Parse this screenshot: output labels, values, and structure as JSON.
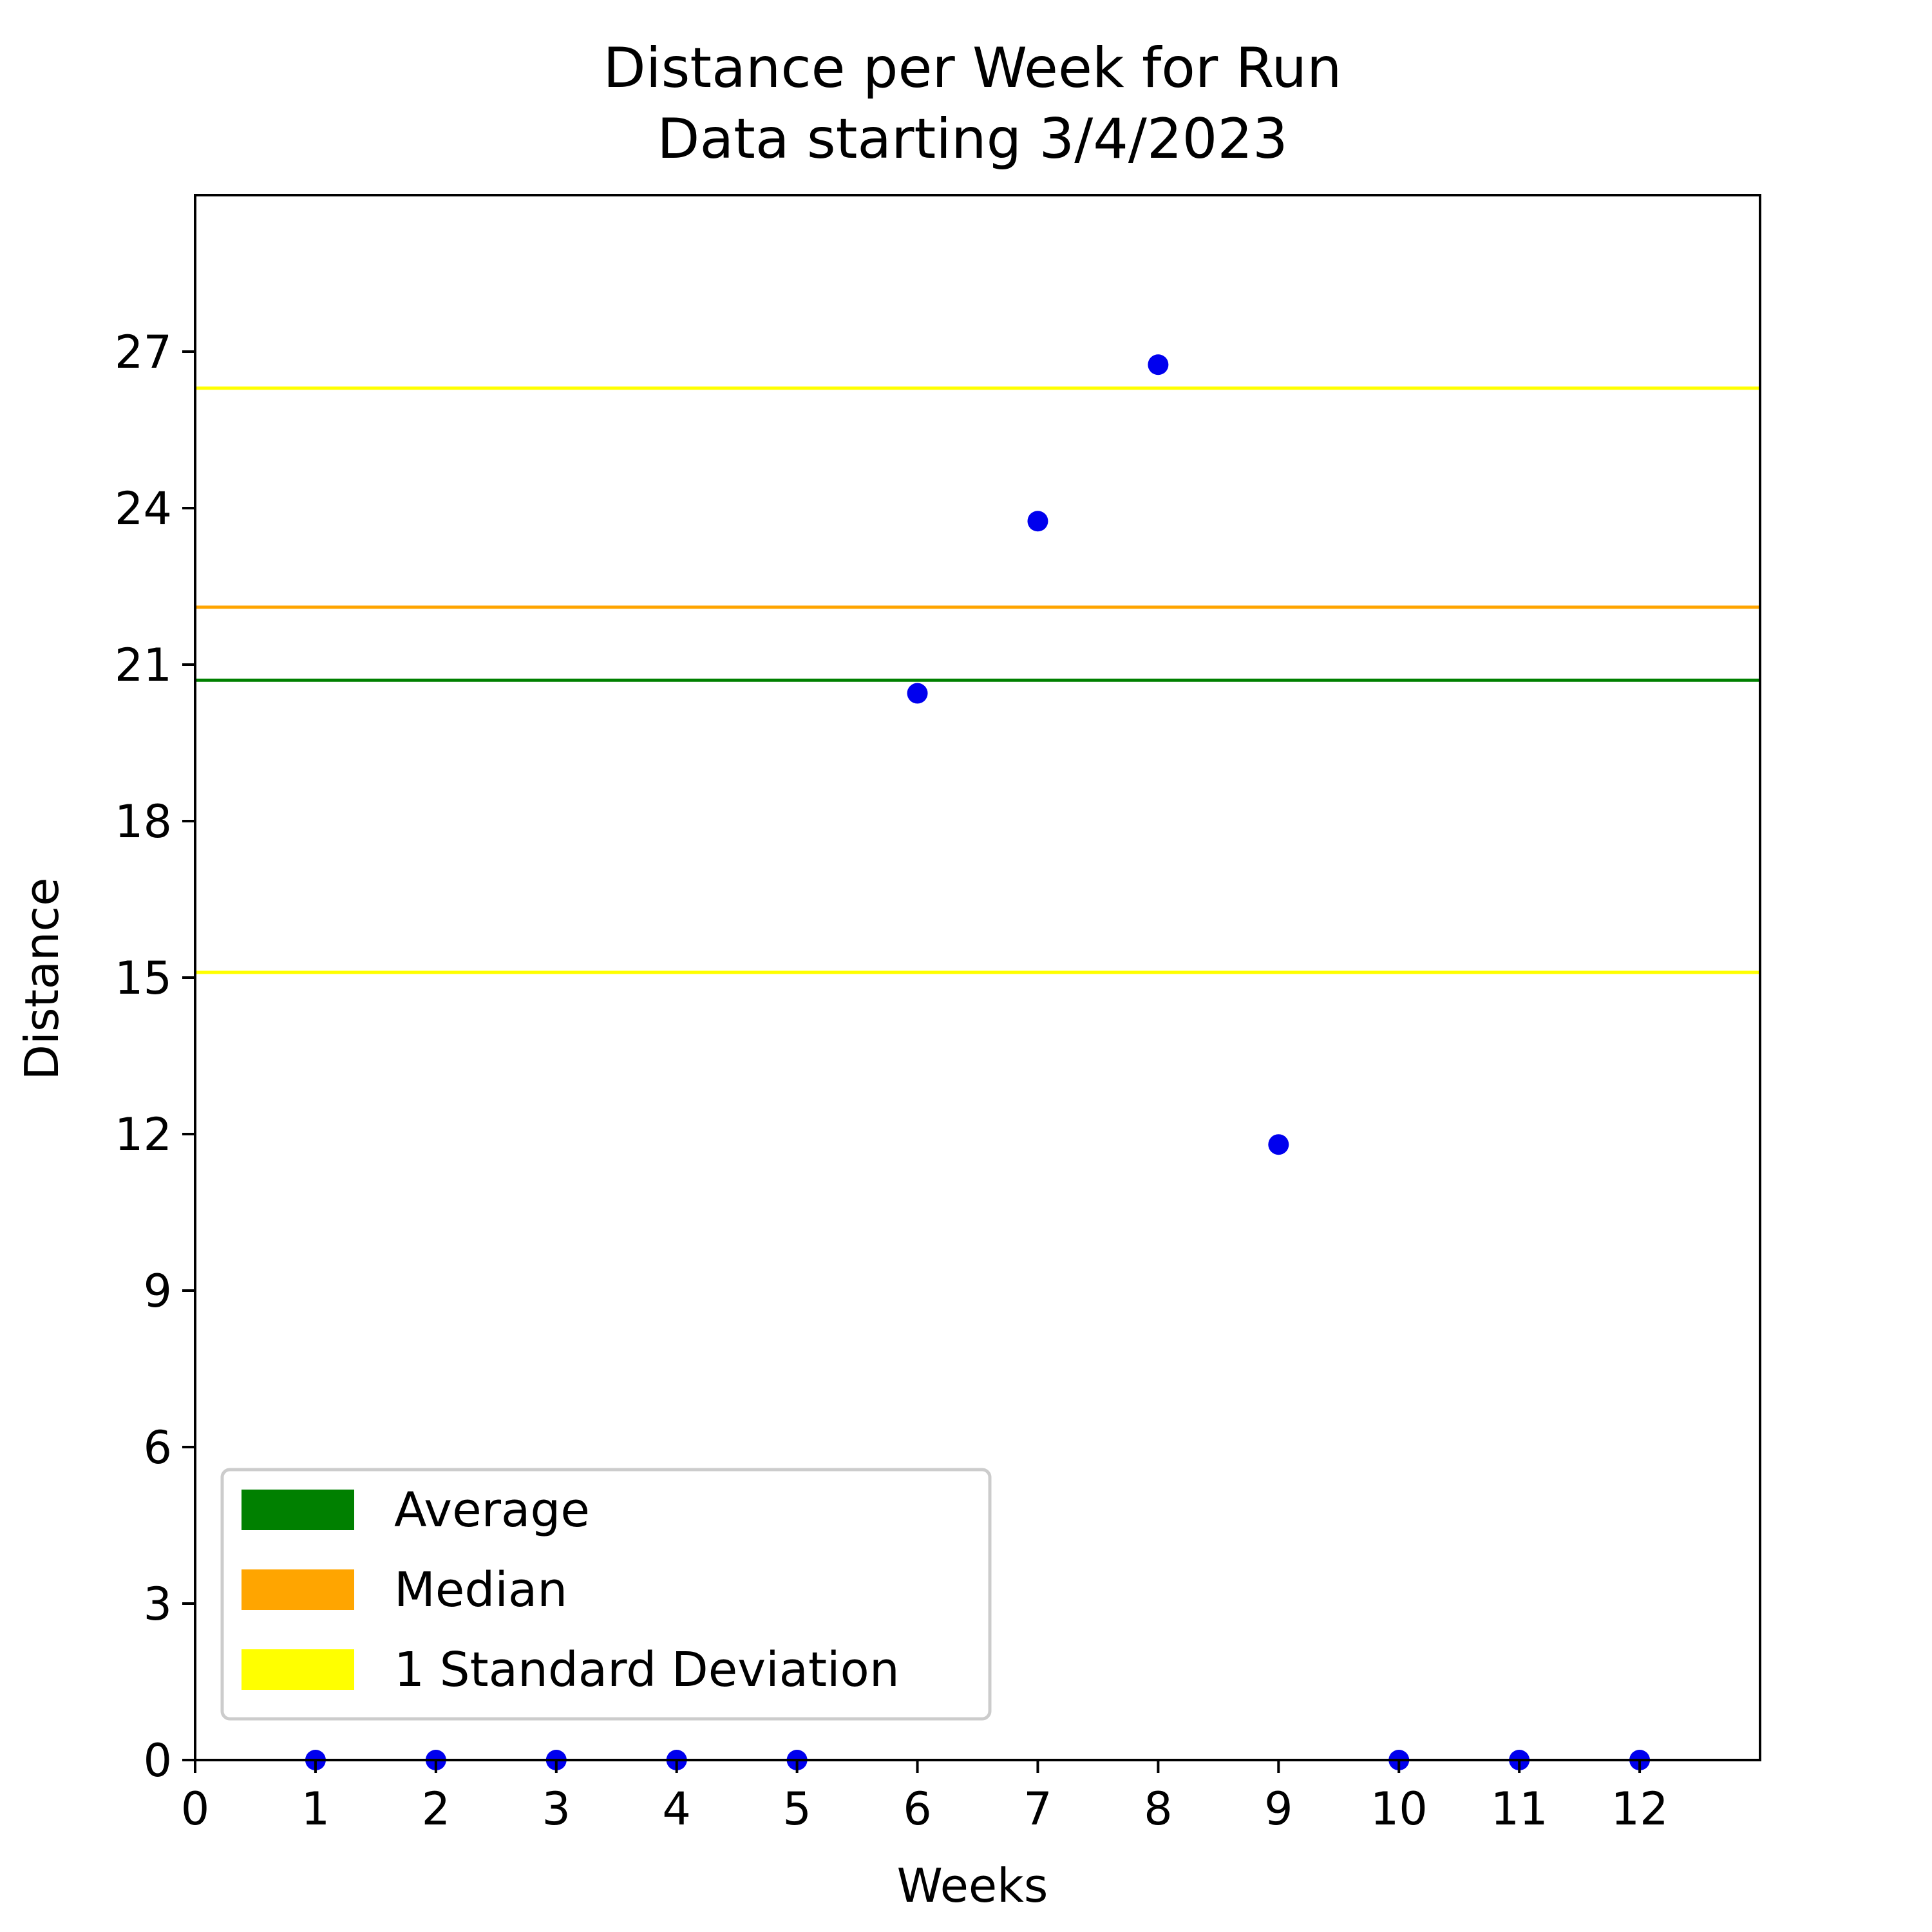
{
  "chart_data": {
    "type": "scatter",
    "title": "Distance per Week for Run",
    "subtitle": "Data starting 3/4/2023",
    "xlabel": "Weeks",
    "ylabel": "Distance",
    "xlim": [
      0,
      13
    ],
    "ylim": [
      0,
      30
    ],
    "xticks": [
      0,
      1,
      2,
      3,
      4,
      5,
      6,
      7,
      8,
      9,
      10,
      11,
      12
    ],
    "yticks": [
      0,
      3,
      6,
      9,
      12,
      15,
      18,
      21,
      24,
      27
    ],
    "grid": false,
    "legend_position": "lower-left",
    "point_color": "#0000ee",
    "points": [
      {
        "x": 1,
        "y": 0
      },
      {
        "x": 2,
        "y": 0
      },
      {
        "x": 3,
        "y": 0
      },
      {
        "x": 4,
        "y": 0
      },
      {
        "x": 5,
        "y": 0
      },
      {
        "x": 6,
        "y": 20.45
      },
      {
        "x": 7,
        "y": 23.75
      },
      {
        "x": 8,
        "y": 26.75
      },
      {
        "x": 9,
        "y": 11.8
      },
      {
        "x": 10,
        "y": 0
      },
      {
        "x": 11,
        "y": 0
      },
      {
        "x": 12,
        "y": 0
      }
    ],
    "reference_lines": [
      {
        "name": "Average",
        "y": 20.7,
        "color": "#008000"
      },
      {
        "name": "Median",
        "y": 22.1,
        "color": "#ffa500"
      },
      {
        "name": "1 Standard Deviation",
        "y": 26.3,
        "color": "#ffff00"
      },
      {
        "name": "1 Standard Deviation",
        "y": 15.1,
        "color": "#ffff00"
      }
    ],
    "legend": [
      {
        "label": "Average",
        "color": "#008000"
      },
      {
        "label": "Median",
        "color": "#ffa500"
      },
      {
        "label": "1 Standard Deviation",
        "color": "#ffff00"
      }
    ]
  }
}
